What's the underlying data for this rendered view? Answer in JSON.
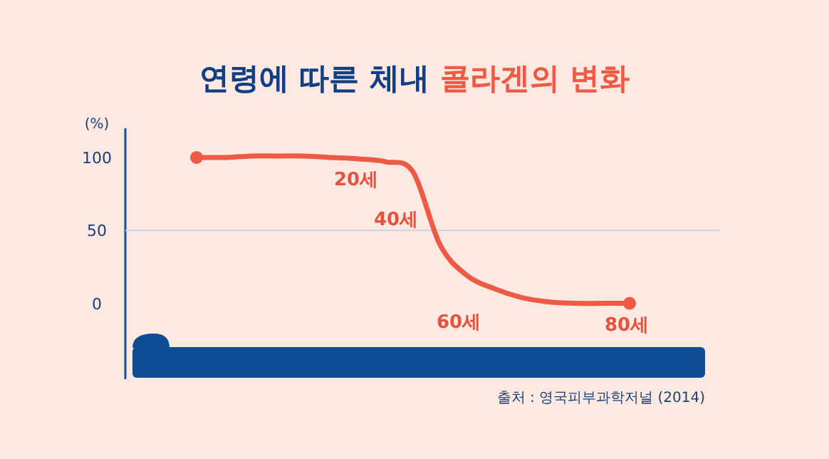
{
  "chart_data": {
    "type": "line",
    "title": "연령에 따른 체내 콜라겐의 변화",
    "ylabel": "(%)",
    "categories": [
      null,
      null,
      null,
      null,
      null,
      null,
      null,
      null,
      null,
      null,
      null,
      null,
      null,
      null,
      null,
      null,
      null
    ],
    "series": [
      {
        "color": "#ef5a45",
        "values": [
          100,
          100,
          101,
          101,
          101,
          100,
          99,
          97,
          90,
          40,
          19,
          10,
          4,
          1,
          0,
          0,
          0
        ]
      }
    ],
    "ylim": [
      -52,
      120
    ],
    "yticks": [
      0,
      50,
      100
    ],
    "ref_lines": [
      {
        "axis": "y",
        "value": 50,
        "color": "#c9d3e6"
      }
    ],
    "bands": [
      {
        "axis": "y",
        "from": -51,
        "to": -30,
        "color": "#0f4c96"
      }
    ],
    "annotations": [
      "20세",
      "40세",
      "60세",
      "80세",
      "출처 : 영국피부과학저널 (2014)"
    ],
    "tick_labels": "y"
  }
}
